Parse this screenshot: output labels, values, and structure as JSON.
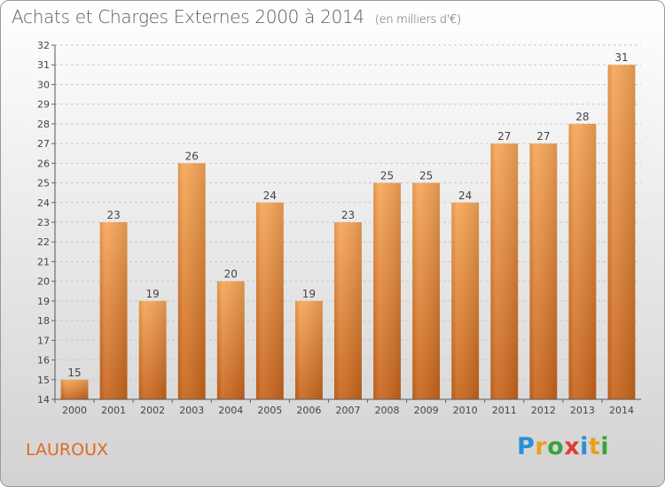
{
  "header": {
    "title": "Achats et Charges Externes 2000 à 2014",
    "unit": "(en milliers d'€)"
  },
  "footer": {
    "commune": "LAUROUX",
    "logo": "Proxiti",
    "logo_colors": [
      "#2b8fd6",
      "#e8a020",
      "#3aa33a",
      "#e03a3a",
      "#2b8fd6",
      "#e8a020",
      "#3aa33a"
    ]
  },
  "chart_data": {
    "type": "bar",
    "title": "Achats et Charges Externes 2000 à 2014",
    "subtitle": "(en milliers d'€)",
    "categories": [
      "2000",
      "2001",
      "2002",
      "2003",
      "2004",
      "2005",
      "2006",
      "2007",
      "2008",
      "2009",
      "2010",
      "2011",
      "2012",
      "2013",
      "2014"
    ],
    "values": [
      15,
      23,
      19,
      26,
      20,
      24,
      19,
      23,
      25,
      25,
      24,
      27,
      27,
      28,
      31
    ],
    "ylim": [
      14,
      32
    ],
    "yticks": [
      14,
      15,
      16,
      17,
      18,
      19,
      20,
      21,
      22,
      23,
      24,
      25,
      26,
      27,
      28,
      29,
      30,
      31,
      32
    ],
    "grid": true,
    "bar_color_top": "#f7a658",
    "bar_color_bottom": "#c8651c"
  }
}
